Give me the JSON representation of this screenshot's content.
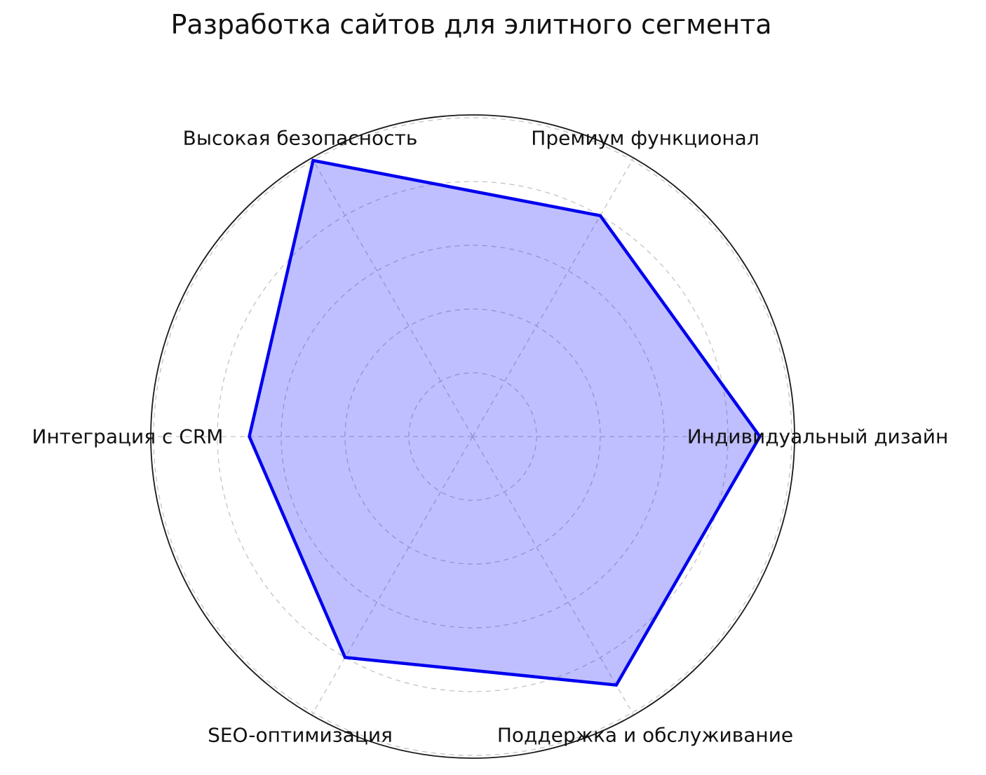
{
  "chart_data": {
    "type": "radar",
    "title": "Разработка сайтов для элитного сегмента",
    "categories": [
      "Индивидуальный дизайн",
      "Премиум функционал",
      "Высокая безопасность",
      "Интеграция с CRM",
      "SEO-оптимизация",
      "Поддержка и обслуживание"
    ],
    "values": [
      9,
      8,
      10,
      7,
      8,
      9
    ],
    "angles_deg": [
      0,
      60,
      120,
      180,
      240,
      300
    ],
    "r_axis": {
      "min": 0,
      "max": 10,
      "gridline_values": [
        2,
        4,
        6,
        8,
        10
      ],
      "tick_labels_visible": false
    },
    "grid": true,
    "legend": false,
    "style": {
      "line_color": "#0000ee",
      "fill_color": "#0000ff",
      "fill_opacity": 0.25,
      "grid_color": "#c3c3c3",
      "spine_color": "#1a1a1a",
      "label_color": "#111111"
    }
  }
}
